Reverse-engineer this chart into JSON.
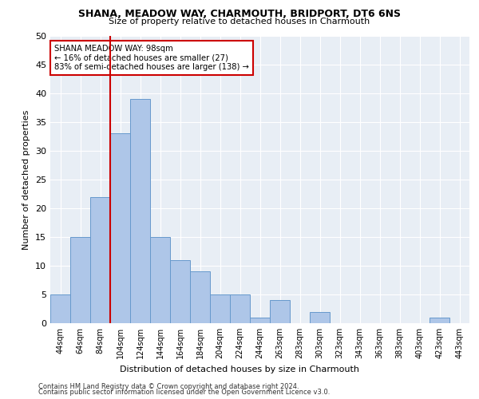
{
  "title1": "SHANA, MEADOW WAY, CHARMOUTH, BRIDPORT, DT6 6NS",
  "title2": "Size of property relative to detached houses in Charmouth",
  "xlabel": "Distribution of detached houses by size in Charmouth",
  "ylabel": "Number of detached properties",
  "bar_labels": [
    "44sqm",
    "64sqm",
    "84sqm",
    "104sqm",
    "124sqm",
    "144sqm",
    "164sqm",
    "184sqm",
    "204sqm",
    "224sqm",
    "244sqm",
    "263sqm",
    "283sqm",
    "303sqm",
    "323sqm",
    "343sqm",
    "363sqm",
    "383sqm",
    "403sqm",
    "423sqm",
    "443sqm"
  ],
  "bar_values": [
    5,
    15,
    22,
    33,
    39,
    15,
    11,
    9,
    5,
    5,
    1,
    4,
    0,
    2,
    0,
    0,
    0,
    0,
    0,
    1,
    0
  ],
  "bar_color": "#aec6e8",
  "bar_edge_color": "#6699cc",
  "vline_color": "#cc0000",
  "ylim": [
    0,
    50
  ],
  "yticks": [
    0,
    5,
    10,
    15,
    20,
    25,
    30,
    35,
    40,
    45,
    50
  ],
  "annotation_text": "SHANA MEADOW WAY: 98sqm\n← 16% of detached houses are smaller (27)\n83% of semi-detached houses are larger (138) →",
  "annotation_box_color": "#ffffff",
  "annotation_box_edge": "#cc0000",
  "bg_color": "#e8eef5",
  "footer1": "Contains HM Land Registry data © Crown copyright and database right 2024.",
  "footer2": "Contains public sector information licensed under the Open Government Licence v3.0."
}
